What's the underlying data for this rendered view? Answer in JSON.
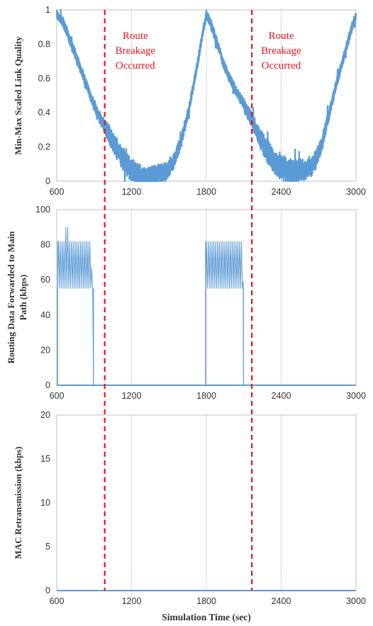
{
  "chart_data": [
    {
      "type": "line",
      "xlabel": "",
      "ylabel": "Min-Max Scaled Link Quality",
      "xlim": [
        600,
        3000
      ],
      "ylim": [
        0,
        1
      ],
      "xticks": [
        "600",
        "1200",
        "1800",
        "2400",
        "3000"
      ],
      "yticks": [
        "0",
        "0.2",
        "0.4",
        "0.6",
        "0.8",
        "1"
      ],
      "grid": "vertical",
      "color": "#5b9bd5",
      "series": [
        {
          "x": [
            600,
            650,
            700,
            760,
            820,
            880,
            940,
            1000,
            1060,
            1120,
            1180,
            1240,
            1300,
            1360,
            1420,
            1480,
            1540,
            1600,
            1660,
            1720,
            1770,
            1800,
            1830,
            1880,
            1940,
            2000,
            2060,
            2120,
            2180,
            2240,
            2300,
            2360,
            2420,
            2480,
            2540,
            2600,
            2660,
            2720,
            2780,
            2840,
            2900,
            2960,
            3000
          ],
          "values": [
            0.97,
            0.93,
            0.84,
            0.72,
            0.6,
            0.48,
            0.38,
            0.3,
            0.22,
            0.14,
            0.08,
            0.04,
            0.03,
            0.03,
            0.04,
            0.06,
            0.12,
            0.24,
            0.42,
            0.65,
            0.86,
            0.97,
            0.93,
            0.82,
            0.68,
            0.58,
            0.5,
            0.42,
            0.33,
            0.24,
            0.16,
            0.1,
            0.07,
            0.06,
            0.06,
            0.07,
            0.1,
            0.2,
            0.38,
            0.56,
            0.72,
            0.88,
            0.97
          ],
          "spread": [
            0.03,
            0.03,
            0.03,
            0.03,
            0.03,
            0.03,
            0.04,
            0.05,
            0.06,
            0.07,
            0.07,
            0.07,
            0.06,
            0.06,
            0.06,
            0.06,
            0.05,
            0.04,
            0.03,
            0.03,
            0.03,
            0.03,
            0.03,
            0.03,
            0.03,
            0.03,
            0.03,
            0.04,
            0.05,
            0.06,
            0.07,
            0.07,
            0.07,
            0.07,
            0.07,
            0.07,
            0.06,
            0.05,
            0.04,
            0.03,
            0.03,
            0.03,
            0.03
          ]
        }
      ]
    },
    {
      "type": "area",
      "xlabel": "",
      "ylabel": "Routing Data Forwarded to Main Path (kbps)",
      "xlim": [
        600,
        3000
      ],
      "ylim": [
        0,
        100
      ],
      "xticks": [
        "600",
        "1200",
        "1800",
        "2400",
        "3000"
      ],
      "yticks": [
        "0",
        "20",
        "40",
        "60",
        "80",
        "100"
      ],
      "grid": "vertical",
      "color": "#5b9bd5",
      "series": [
        {
          "bursts": [
            {
              "x_start": 607,
              "x_end": 895,
              "low": 55,
              "high": 82,
              "spike": 90,
              "spike_end": 712,
              "tail_x": [
                880,
                895
              ],
              "tail_top": 68
            },
            {
              "x_start": 1793,
              "x_end": 2098,
              "low": 55,
              "high": 82,
              "spike": 90,
              "spike_end": 1890,
              "tail_x": [
                2085,
                2098
              ],
              "tail_top": 60
            }
          ],
          "baseline": 0
        }
      ]
    },
    {
      "type": "line",
      "xlabel": "Simulation  Time (sec)",
      "ylabel": "MAC Retransmission (kbps)",
      "xlim": [
        600,
        3000
      ],
      "ylim": [
        0,
        20
      ],
      "xticks": [
        "600",
        "1200",
        "1800",
        "2400",
        "3000"
      ],
      "yticks": [
        "0",
        "5",
        "10",
        "15",
        "20"
      ],
      "grid": "vertical",
      "color": "#5b9bd5",
      "series": [
        {
          "x": [
            600,
            3000
          ],
          "values": [
            0,
            0
          ]
        }
      ]
    }
  ],
  "overlay": {
    "route_breakage_x": [
      985,
      2165
    ],
    "line_color": "#e8141a",
    "annotations": [
      {
        "lines": [
          "Route",
          "Breakage",
          "Occurred"
        ],
        "x_center": 1230,
        "y_value": 0.83
      },
      {
        "lines": [
          "Route",
          "Breakage",
          "Occurred"
        ],
        "x_center": 2400,
        "y_value": 0.83
      }
    ]
  }
}
